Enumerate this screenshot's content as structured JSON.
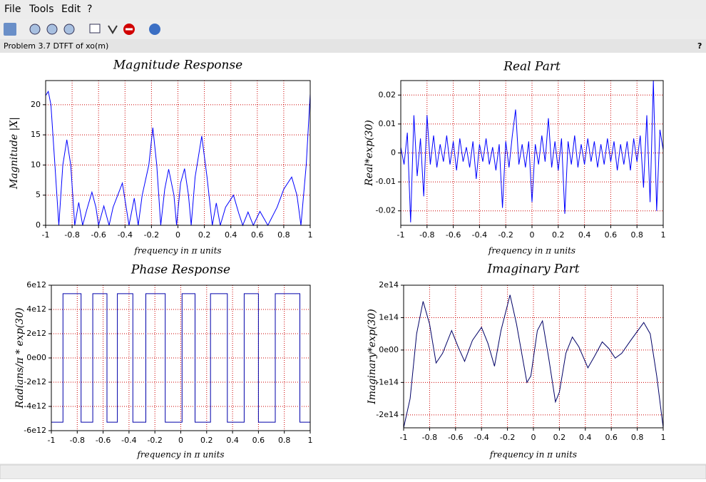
{
  "menu": [
    "File",
    "Tools",
    "Edit",
    "?"
  ],
  "window_title": "Problem 3.7 DTFT of xo(m)",
  "help": "?",
  "chart_data": [
    {
      "type": "line",
      "title": "Magnitude Response",
      "xlabel": "frequency in π units",
      "ylabel": "Magnitude |X|",
      "color": "#0000ff",
      "grid": true,
      "grid_color": "#cc0000",
      "xlim": [
        -1,
        1
      ],
      "xticks": [
        -1,
        -0.8,
        -0.6,
        -0.4,
        -0.2,
        0,
        0.2,
        0.4,
        0.6,
        0.8,
        1
      ],
      "ylim": [
        0,
        24
      ],
      "yticks": [
        0,
        5,
        10,
        15,
        20
      ],
      "x": [
        -1,
        -0.98,
        -0.96,
        -0.93,
        -0.9,
        -0.87,
        -0.84,
        -0.81,
        -0.78,
        -0.75,
        -0.72,
        -0.69,
        -0.65,
        -0.62,
        -0.6,
        -0.56,
        -0.52,
        -0.49,
        -0.42,
        -0.37,
        -0.33,
        -0.3,
        -0.27,
        -0.22,
        -0.19,
        -0.16,
        -0.13,
        -0.1,
        -0.07,
        -0.03,
        -0.01,
        0.02,
        0.05,
        0.08,
        0.1,
        0.13,
        0.18,
        0.22,
        0.26,
        0.29,
        0.32,
        0.36,
        0.42,
        0.46,
        0.49,
        0.53,
        0.57,
        0.62,
        0.68,
        0.75,
        0.8,
        0.86,
        0.9,
        0.93,
        0.97,
        1
      ],
      "values": [
        21.5,
        22.2,
        20,
        10,
        0,
        10,
        14.2,
        10,
        0,
        3.8,
        0,
        2.5,
        5.5,
        3,
        0,
        3.2,
        0,
        3,
        7,
        0,
        4.5,
        0,
        5,
        10,
        16.2,
        10,
        0,
        6,
        9.3,
        5,
        0,
        7,
        9.4,
        5,
        0,
        8,
        14.8,
        8,
        0,
        3.7,
        0,
        3,
        5,
        2,
        0,
        2.2,
        0,
        2.3,
        0,
        3,
        6,
        8,
        5,
        0,
        10,
        21.8
      ]
    },
    {
      "type": "line",
      "title": "Real Part",
      "xlabel": "frequency in π units",
      "ylabel": "Real*exp(30)",
      "color": "#0000ff",
      "grid": true,
      "grid_color": "#cc0000",
      "xlim": [
        -1,
        1
      ],
      "xticks": [
        -1,
        -0.8,
        -0.6,
        -0.4,
        -0.2,
        0,
        0.2,
        0.4,
        0.6,
        0.8,
        1
      ],
      "ylim": [
        -0.025,
        0.025
      ],
      "yticks": [
        -0.02,
        -0.01,
        0,
        0.01,
        0.02
      ],
      "x": [
        -1,
        -0.975,
        -0.95,
        -0.925,
        -0.9,
        -0.875,
        -0.85,
        -0.825,
        -0.8,
        -0.775,
        -0.75,
        -0.725,
        -0.7,
        -0.675,
        -0.65,
        -0.625,
        -0.6,
        -0.575,
        -0.55,
        -0.525,
        -0.5,
        -0.475,
        -0.45,
        -0.425,
        -0.4,
        -0.375,
        -0.35,
        -0.325,
        -0.3,
        -0.275,
        -0.25,
        -0.225,
        -0.2,
        -0.175,
        -0.15,
        -0.125,
        -0.1,
        -0.075,
        -0.05,
        -0.025,
        0,
        0.025,
        0.05,
        0.075,
        0.1,
        0.125,
        0.15,
        0.175,
        0.2,
        0.225,
        0.25,
        0.275,
        0.3,
        0.325,
        0.35,
        0.375,
        0.4,
        0.425,
        0.45,
        0.475,
        0.5,
        0.525,
        0.55,
        0.575,
        0.6,
        0.625,
        0.65,
        0.675,
        0.7,
        0.725,
        0.75,
        0.775,
        0.8,
        0.825,
        0.85,
        0.875,
        0.9,
        0.925,
        0.95,
        0.975,
        1
      ],
      "values": [
        0.002,
        -0.004,
        0.007,
        -0.024,
        0.013,
        -0.008,
        0.005,
        -0.015,
        0.013,
        -0.004,
        0.006,
        -0.005,
        0.003,
        -0.003,
        0.006,
        -0.004,
        0.004,
        -0.006,
        0.005,
        -0.003,
        0.002,
        -0.005,
        0.004,
        -0.009,
        0.003,
        -0.003,
        0.005,
        -0.004,
        0.002,
        -0.006,
        0.003,
        -0.019,
        0.004,
        -0.005,
        0.006,
        0.015,
        -0.004,
        0.003,
        -0.005,
        0.004,
        -0.017,
        0.003,
        -0.004,
        0.006,
        -0.003,
        0.012,
        -0.005,
        0.004,
        -0.006,
        0.005,
        -0.021,
        0.004,
        -0.004,
        0.006,
        -0.005,
        0.003,
        -0.004,
        0.005,
        -0.003,
        0.004,
        -0.005,
        0.003,
        -0.004,
        0.005,
        -0.003,
        0.004,
        -0.006,
        0.003,
        -0.004,
        0.004,
        -0.006,
        0.005,
        -0.003,
        0.006,
        -0.012,
        0.013,
        -0.017,
        0.025,
        -0.02,
        0.008,
        0.001
      ]
    },
    {
      "type": "line",
      "title": "Phase Response",
      "xlabel": "frequency in π units",
      "ylabel": "Radians/π * exp(30)",
      "color": "#0000aa",
      "grid": true,
      "grid_color": "#cc0000",
      "xlim": [
        -1,
        1
      ],
      "xticks": [
        -1,
        -0.8,
        -0.6,
        -0.4,
        -0.2,
        0,
        0.2,
        0.4,
        0.6,
        0.8,
        1
      ],
      "ylim": [
        -6000000000000.0,
        6000000000000.0
      ],
      "yticks": [
        {
          "value": -6000000000000.0,
          "label": "-6e12"
        },
        {
          "value": -4000000000000.0,
          "label": "-4e12"
        },
        {
          "value": -2000000000000.0,
          "label": "-2e12"
        },
        {
          "value": 0,
          "label": "0e00"
        },
        {
          "value": 2000000000000.0,
          "label": "2e12"
        },
        {
          "value": 4000000000000.0,
          "label": "4e12"
        },
        {
          "value": 6000000000000.0,
          "label": "6e12"
        }
      ],
      "x": [
        -1,
        -0.91,
        -0.91,
        -0.77,
        -0.77,
        -0.68,
        -0.68,
        -0.57,
        -0.57,
        -0.49,
        -0.49,
        -0.37,
        -0.37,
        -0.27,
        -0.27,
        -0.12,
        -0.12,
        0.01,
        0.01,
        0.11,
        0.11,
        0.23,
        0.23,
        0.36,
        0.36,
        0.49,
        0.49,
        0.6,
        0.6,
        0.73,
        0.73,
        0.92,
        0.92,
        1
      ],
      "values": [
        -5300000000000.0,
        -5300000000000.0,
        5300000000000.0,
        5300000000000.0,
        -5300000000000.0,
        -5300000000000.0,
        5300000000000.0,
        5300000000000.0,
        -5300000000000.0,
        -5300000000000.0,
        5300000000000.0,
        5300000000000.0,
        -5300000000000.0,
        -5300000000000.0,
        5300000000000.0,
        5300000000000.0,
        -5300000000000.0,
        -5300000000000.0,
        5300000000000.0,
        5300000000000.0,
        -5300000000000.0,
        -5300000000000.0,
        5300000000000.0,
        5300000000000.0,
        -5300000000000.0,
        -5300000000000.0,
        5300000000000.0,
        5300000000000.0,
        -5300000000000.0,
        -5300000000000.0,
        5300000000000.0,
        5300000000000.0,
        -5300000000000.0,
        -5300000000000.0
      ]
    },
    {
      "type": "line",
      "title": "Imaginary Part",
      "xlabel": "frequency in π units",
      "ylabel": "Imaginary*exp(30)",
      "color": "#000066",
      "grid": true,
      "grid_color": "#cc0000",
      "xlim": [
        -1,
        1
      ],
      "xticks": [
        -1,
        -0.8,
        -0.6,
        -0.4,
        -0.2,
        0,
        0.2,
        0.4,
        0.6,
        0.8,
        1
      ],
      "ylim": [
        -240000000000000.0,
        200000000000000.0
      ],
      "yticks": [
        {
          "value": -200000000000000.0,
          "label": "-2e14"
        },
        {
          "value": -100000000000000.0,
          "label": "-1e14"
        },
        {
          "value": 0,
          "label": "0e00"
        },
        {
          "value": 100000000000000.0,
          "label": "1e14"
        },
        {
          "value": 200000000000000.0,
          "label": "2e14"
        }
      ],
      "x": [
        -1,
        -0.95,
        -0.9,
        -0.85,
        -0.8,
        -0.75,
        -0.7,
        -0.63,
        -0.58,
        -0.53,
        -0.47,
        -0.4,
        -0.35,
        -0.3,
        -0.25,
        -0.18,
        -0.13,
        -0.05,
        -0.02,
        0.03,
        0.07,
        0.12,
        0.17,
        0.2,
        0.25,
        0.3,
        0.35,
        0.42,
        0.47,
        0.53,
        0.58,
        0.63,
        0.68,
        0.75,
        0.85,
        0.9,
        0.95,
        1
      ],
      "values": [
        -240000000000000.0,
        -150000000000000.0,
        50000000000000.0,
        150000000000000.0,
        80000000000000.0,
        -40000000000000.0,
        -10000000000000.0,
        60000000000000.0,
        10000000000000.0,
        -35000000000000.0,
        30000000000000.0,
        70000000000000.0,
        20000000000000.0,
        -50000000000000.0,
        60000000000000.0,
        170000000000000.0,
        80000000000000.0,
        -100000000000000.0,
        -80000000000000.0,
        60000000000000.0,
        90000000000000.0,
        -30000000000000.0,
        -160000000000000.0,
        -130000000000000.0,
        -10000000000000.0,
        40000000000000.0,
        10000000000000.0,
        -55000000000000.0,
        -20000000000000.0,
        25000000000000.0,
        5000000000000.0,
        -25000000000000.0,
        -10000000000000.0,
        30000000000000.0,
        85000000000000.0,
        50000000000000.0,
        -80000000000000.0,
        -240000000000000.0
      ]
    }
  ]
}
